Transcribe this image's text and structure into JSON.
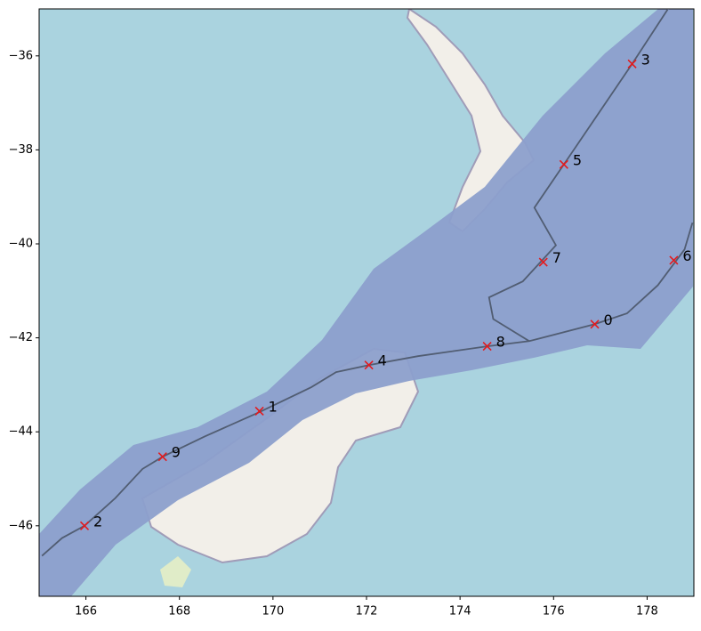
{
  "chart_data": {
    "type": "scatter",
    "x": [
      176.88,
      169.71,
      165.97,
      177.68,
      172.05,
      176.22,
      178.57,
      175.78,
      174.58,
      167.64
    ],
    "y": [
      -41.71,
      -43.56,
      -46.0,
      -36.17,
      -42.58,
      -38.31,
      -40.35,
      -40.39,
      -42.18,
      -44.53
    ],
    "labels": [
      "0",
      "1",
      "2",
      "3",
      "4",
      "5",
      "6",
      "7",
      "8",
      "9"
    ],
    "color": "#e41a1c",
    "line": {
      "color": "#4a5568",
      "x": [
        165.06,
        165.49,
        165.97,
        166.63,
        167.21,
        167.64,
        168.54,
        169.71,
        170.82,
        171.35,
        172.05,
        173.1,
        174.58,
        175.48,
        176.88,
        177.57,
        178.23,
        178.8,
        178.97,
        null,
        175.48,
        174.71,
        174.62,
        175.34,
        176.05,
        175.59,
        176.22,
        177.68,
        178.46
      ],
      "y": [
        -46.64,
        -46.26,
        -46.0,
        -45.41,
        -44.79,
        -44.53,
        -44.1,
        -43.58,
        -43.05,
        -42.73,
        -42.58,
        -42.39,
        -42.18,
        -42.07,
        -41.71,
        -41.48,
        -40.88,
        -40.12,
        -39.55,
        null,
        -42.07,
        -41.6,
        -41.14,
        -40.8,
        -40.03,
        -39.23,
        -38.31,
        -36.17,
        -34.98
      ]
    },
    "xlim": [
      165,
      179
    ],
    "ylim": [
      -47.5,
      -35
    ],
    "xticks": [
      166,
      168,
      170,
      172,
      174,
      176,
      178
    ],
    "yticks": [
      {
        "value": -36,
        "label": "−36"
      },
      {
        "value": -38,
        "label": "−38"
      },
      {
        "value": -40,
        "label": "−40"
      },
      {
        "value": -42,
        "label": "−42"
      },
      {
        "value": -44,
        "label": "−44"
      },
      {
        "value": -46,
        "label": "−46"
      }
    ]
  }
}
